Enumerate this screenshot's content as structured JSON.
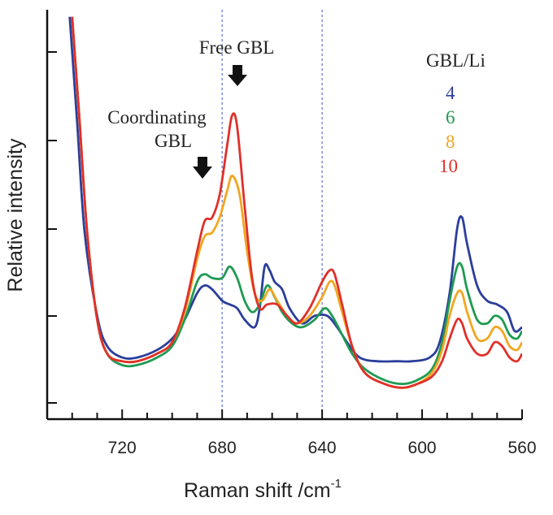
{
  "chart_data": {
    "type": "line",
    "xlabel": "Raman shift /cm",
    "xlabel_superscript": "-1",
    "ylabel": "Relative intensity",
    "xlim": [
      750,
      560
    ],
    "ylim": [
      0,
      1
    ],
    "x_ticks": [
      720,
      680,
      640,
      600,
      560
    ],
    "x_ticks_labels": [
      "720",
      "680",
      "640",
      "600",
      "560"
    ],
    "reference_lines_x": [
      680,
      640
    ],
    "annotations": {
      "free": "Free GBL",
      "coordinating_line1": "Coordinating",
      "coordinating_line2": "GBL"
    },
    "legend": {
      "title": "GBL/Li",
      "placement": "top-right"
    },
    "series": [
      {
        "name": "4",
        "color": "#2b3e9b",
        "points": [
          [
            741,
            1.02
          ],
          [
            738,
            0.74
          ],
          [
            735,
            0.45
          ],
          [
            730,
            0.23
          ],
          [
            726,
            0.15
          ],
          [
            720,
            0.12
          ],
          [
            714,
            0.12
          ],
          [
            706,
            0.14
          ],
          [
            700,
            0.17
          ],
          [
            695,
            0.22
          ],
          [
            690,
            0.29
          ],
          [
            687,
            0.31
          ],
          [
            684,
            0.3
          ],
          [
            680,
            0.27
          ],
          [
            677,
            0.26
          ],
          [
            674,
            0.25
          ],
          [
            671,
            0.22
          ],
          [
            667,
            0.2
          ],
          [
            665,
            0.25
          ],
          [
            663,
            0.36
          ],
          [
            661,
            0.35
          ],
          [
            659,
            0.32
          ],
          [
            656,
            0.3
          ],
          [
            653,
            0.25
          ],
          [
            648,
            0.21
          ],
          [
            643,
            0.23
          ],
          [
            638,
            0.23
          ],
          [
            634,
            0.2
          ],
          [
            630,
            0.16
          ],
          [
            625,
            0.12
          ],
          [
            618,
            0.11
          ],
          [
            610,
            0.11
          ],
          [
            604,
            0.11
          ],
          [
            597,
            0.12
          ],
          [
            593,
            0.16
          ],
          [
            589,
            0.29
          ],
          [
            586,
            0.46
          ],
          [
            584,
            0.49
          ],
          [
            582,
            0.42
          ],
          [
            578,
            0.31
          ],
          [
            574,
            0.27
          ],
          [
            570,
            0.26
          ],
          [
            566,
            0.24
          ],
          [
            563,
            0.19
          ],
          [
            560,
            0.2
          ]
        ]
      },
      {
        "name": "6",
        "color": "#1f9a52",
        "points": [
          [
            740,
            1.02
          ],
          [
            737,
            0.74
          ],
          [
            734,
            0.45
          ],
          [
            730,
            0.22
          ],
          [
            726,
            0.13
          ],
          [
            720,
            0.1
          ],
          [
            714,
            0.1
          ],
          [
            706,
            0.12
          ],
          [
            700,
            0.15
          ],
          [
            695,
            0.22
          ],
          [
            690,
            0.32
          ],
          [
            687,
            0.34
          ],
          [
            684,
            0.33
          ],
          [
            680,
            0.33
          ],
          [
            677,
            0.36
          ],
          [
            674,
            0.33
          ],
          [
            671,
            0.27
          ],
          [
            668,
            0.24
          ],
          [
            665,
            0.26
          ],
          [
            662,
            0.31
          ],
          [
            659,
            0.28
          ],
          [
            656,
            0.24
          ],
          [
            652,
            0.21
          ],
          [
            648,
            0.2
          ],
          [
            643,
            0.22
          ],
          [
            639,
            0.25
          ],
          [
            636,
            0.23
          ],
          [
            632,
            0.18
          ],
          [
            628,
            0.13
          ],
          [
            623,
            0.09
          ],
          [
            615,
            0.06
          ],
          [
            608,
            0.05
          ],
          [
            602,
            0.06
          ],
          [
            596,
            0.09
          ],
          [
            592,
            0.16
          ],
          [
            589,
            0.27
          ],
          [
            586,
            0.36
          ],
          [
            584,
            0.36
          ],
          [
            582,
            0.3
          ],
          [
            578,
            0.22
          ],
          [
            574,
            0.21
          ],
          [
            571,
            0.23
          ],
          [
            568,
            0.22
          ],
          [
            565,
            0.18
          ],
          [
            562,
            0.17
          ],
          [
            560,
            0.19
          ]
        ]
      },
      {
        "name": "8",
        "color": "#f2a620",
        "points": [
          [
            740,
            1.02
          ],
          [
            737,
            0.74
          ],
          [
            734,
            0.45
          ],
          [
            730,
            0.22
          ],
          [
            726,
            0.13
          ],
          [
            720,
            0.11
          ],
          [
            714,
            0.11
          ],
          [
            706,
            0.13
          ],
          [
            700,
            0.16
          ],
          [
            695,
            0.24
          ],
          [
            690,
            0.38
          ],
          [
            687,
            0.44
          ],
          [
            684,
            0.45
          ],
          [
            681,
            0.49
          ],
          [
            678,
            0.56
          ],
          [
            676,
            0.6
          ],
          [
            673,
            0.55
          ],
          [
            670,
            0.4
          ],
          [
            667,
            0.29
          ],
          [
            664,
            0.27
          ],
          [
            661,
            0.3
          ],
          [
            658,
            0.27
          ],
          [
            654,
            0.23
          ],
          [
            650,
            0.21
          ],
          [
            645,
            0.23
          ],
          [
            640,
            0.28
          ],
          [
            637,
            0.32
          ],
          [
            635,
            0.31
          ],
          [
            632,
            0.24
          ],
          [
            628,
            0.15
          ],
          [
            623,
            0.08
          ],
          [
            615,
            0.05
          ],
          [
            608,
            0.04
          ],
          [
            602,
            0.05
          ],
          [
            596,
            0.08
          ],
          [
            592,
            0.14
          ],
          [
            589,
            0.23
          ],
          [
            586,
            0.29
          ],
          [
            584,
            0.29
          ],
          [
            582,
            0.24
          ],
          [
            578,
            0.17
          ],
          [
            574,
            0.17
          ],
          [
            571,
            0.2
          ],
          [
            568,
            0.19
          ],
          [
            565,
            0.15
          ],
          [
            562,
            0.14
          ],
          [
            560,
            0.16
          ]
        ]
      },
      {
        "name": "10",
        "color": "#e0302a",
        "points": [
          [
            740,
            1.02
          ],
          [
            737,
            0.74
          ],
          [
            734,
            0.45
          ],
          [
            730,
            0.22
          ],
          [
            726,
            0.13
          ],
          [
            720,
            0.11
          ],
          [
            714,
            0.11
          ],
          [
            706,
            0.13
          ],
          [
            700,
            0.16
          ],
          [
            695,
            0.25
          ],
          [
            690,
            0.4
          ],
          [
            687,
            0.48
          ],
          [
            684,
            0.49
          ],
          [
            681,
            0.55
          ],
          [
            678,
            0.68
          ],
          [
            676,
            0.76
          ],
          [
            674,
            0.73
          ],
          [
            671,
            0.52
          ],
          [
            668,
            0.33
          ],
          [
            665,
            0.25
          ],
          [
            662,
            0.26
          ],
          [
            658,
            0.26
          ],
          [
            654,
            0.23
          ],
          [
            650,
            0.21
          ],
          [
            645,
            0.25
          ],
          [
            640,
            0.32
          ],
          [
            637,
            0.35
          ],
          [
            635,
            0.34
          ],
          [
            632,
            0.26
          ],
          [
            628,
            0.15
          ],
          [
            623,
            0.08
          ],
          [
            615,
            0.05
          ],
          [
            608,
            0.04
          ],
          [
            602,
            0.05
          ],
          [
            596,
            0.07
          ],
          [
            592,
            0.11
          ],
          [
            589,
            0.17
          ],
          [
            586,
            0.22
          ],
          [
            584,
            0.21
          ],
          [
            582,
            0.17
          ],
          [
            578,
            0.13
          ],
          [
            574,
            0.13
          ],
          [
            571,
            0.16
          ],
          [
            568,
            0.15
          ],
          [
            565,
            0.12
          ],
          [
            562,
            0.11
          ],
          [
            560,
            0.13
          ]
        ]
      }
    ]
  }
}
